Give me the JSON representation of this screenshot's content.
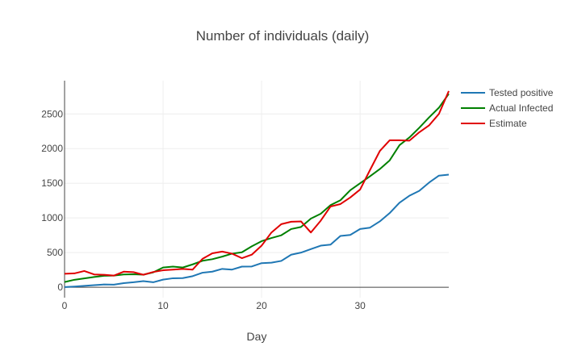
{
  "chart_data": {
    "type": "line",
    "title": "Number of individuals (daily)",
    "xlabel": "Day",
    "ylabel": "",
    "xlim": [
      0,
      39
    ],
    "ylim": [
      -150,
      2980
    ],
    "x_ticks": [
      0,
      10,
      20,
      30
    ],
    "y_ticks": [
      0,
      500,
      1000,
      1500,
      2000,
      2500
    ],
    "grid": true,
    "legend_position": "top-right",
    "x": [
      0,
      1,
      2,
      3,
      4,
      5,
      6,
      7,
      8,
      9,
      10,
      11,
      12,
      13,
      14,
      15,
      16,
      17,
      18,
      19,
      20,
      21,
      22,
      23,
      24,
      25,
      26,
      27,
      28,
      29,
      30,
      31,
      32,
      33,
      34,
      35,
      36,
      37,
      38,
      39
    ],
    "series": [
      {
        "name": "Tested positive",
        "color": "#1f77b4",
        "values": [
          3,
          10,
          20,
          30,
          40,
          38,
          60,
          72,
          88,
          72,
          110,
          130,
          132,
          160,
          210,
          225,
          265,
          255,
          298,
          300,
          348,
          355,
          380,
          470,
          500,
          550,
          600,
          615,
          740,
          755,
          840,
          860,
          950,
          1070,
          1220,
          1320,
          1390,
          1510,
          1610,
          1625
        ]
      },
      {
        "name": "Actual Infected",
        "color": "#008000",
        "values": [
          75,
          108,
          128,
          148,
          165,
          168,
          185,
          188,
          182,
          215,
          285,
          298,
          285,
          330,
          382,
          405,
          442,
          485,
          505,
          590,
          665,
          710,
          750,
          840,
          870,
          990,
          1060,
          1185,
          1255,
          1400,
          1500,
          1600,
          1705,
          1830,
          2050,
          2160,
          2300,
          2450,
          2590,
          2790
        ]
      },
      {
        "name": "Estimate",
        "color": "#e00000",
        "values": [
          195,
          200,
          235,
          185,
          180,
          168,
          225,
          218,
          180,
          220,
          245,
          255,
          265,
          255,
          410,
          490,
          515,
          485,
          420,
          470,
          600,
          790,
          910,
          945,
          950,
          790,
          960,
          1165,
          1200,
          1295,
          1410,
          1690,
          1965,
          2120,
          2120,
          2115,
          2235,
          2335,
          2500,
          2830
        ]
      }
    ]
  }
}
